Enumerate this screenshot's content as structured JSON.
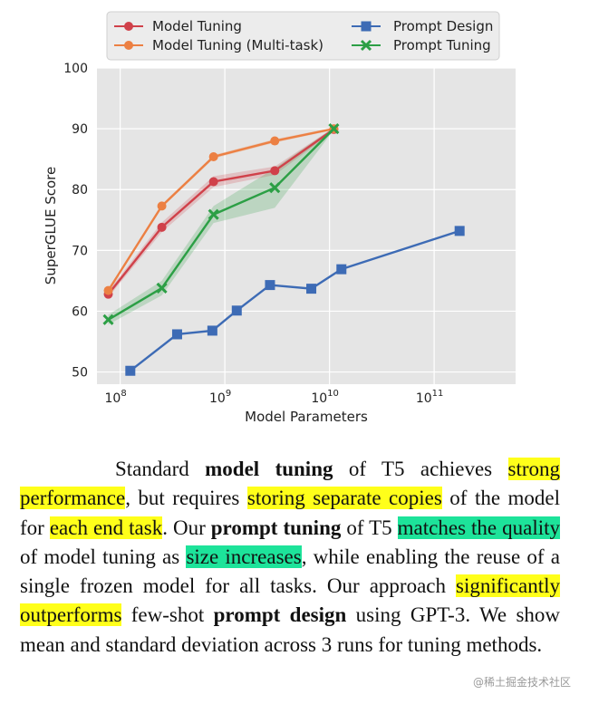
{
  "chart_data": {
    "type": "line",
    "xlabel": "Model Parameters",
    "ylabel": "SuperGLUE Score",
    "xscale": "log",
    "xlim": [
      60000000,
      600000000000
    ],
    "ylim": [
      48,
      100
    ],
    "yticks": [
      50,
      60,
      70,
      80,
      90,
      100
    ],
    "xticks": [
      {
        "value": 100000000,
        "base": "10",
        "exp": "8"
      },
      {
        "value": 1000000000,
        "base": "10",
        "exp": "9"
      },
      {
        "value": 10000000000,
        "base": "10",
        "exp": "10"
      },
      {
        "value": 100000000000,
        "base": "10",
        "exp": "11"
      }
    ],
    "grid": true,
    "legend_position": "top",
    "series": [
      {
        "name": "Model Tuning",
        "color": "#d0414a",
        "marker": "circle",
        "x": [
          77000000,
          250000000,
          780000000,
          3000000000,
          11000000000
        ],
        "y": [
          62.8,
          73.8,
          81.3,
          83.1,
          89.9
        ],
        "lower": [
          62.3,
          73.0,
          80.4,
          82.4,
          89.6
        ],
        "upper": [
          63.3,
          74.6,
          82.2,
          83.8,
          90.2
        ]
      },
      {
        "name": "Model Tuning (Multi-task)",
        "color": "#ec8043",
        "marker": "circle",
        "x": [
          77000000,
          250000000,
          780000000,
          3000000000,
          11000000000
        ],
        "y": [
          63.4,
          77.3,
          85.4,
          88.0,
          90.0
        ],
        "lower": [
          63.2,
          77.0,
          85.1,
          87.7,
          89.8
        ],
        "upper": [
          63.6,
          77.6,
          85.7,
          88.3,
          90.2
        ]
      },
      {
        "name": "Prompt Design",
        "color": "#3d6bb5",
        "marker": "square",
        "x": [
          125000000,
          350000000,
          760000000,
          1300000000,
          2700000000,
          6700000000,
          13000000000,
          175000000000
        ],
        "y": [
          50.2,
          56.2,
          56.8,
          60.1,
          64.3,
          63.7,
          66.9,
          73.2
        ]
      },
      {
        "name": "Prompt Tuning",
        "color": "#2c9f45",
        "marker": "x",
        "x": [
          77000000,
          250000000,
          780000000,
          3000000000,
          11000000000
        ],
        "y": [
          58.6,
          63.8,
          75.9,
          80.3,
          90.0
        ],
        "lower": [
          57.8,
          62.6,
          74.5,
          77.0,
          89.8
        ],
        "upper": [
          59.4,
          65.0,
          77.3,
          83.5,
          90.2
        ]
      }
    ]
  },
  "caption": {
    "s1": "Standard ",
    "b1": "model tuning",
    "s2": " of T5 achieves ",
    "h1": "strong performance",
    "s3": ", but requires ",
    "h2": "storing separate copies",
    "s4": " of the model for ",
    "h3": "each end task",
    "s5": ".  Our ",
    "b2": "prompt tuning",
    "s6": " of T5 ",
    "h4": "matches the quality",
    "s7": " of model tuning as ",
    "h5": "size increases",
    "s8": ", while enabling the reuse of a single frozen model for all tasks.  Our approach ",
    "h6": "significantly outperforms",
    "s9": " few-shot ",
    "b3": "prompt design",
    "s10": " using GPT-3.  We show mean and standard deviation across 3 runs for tuning methods."
  },
  "watermark": "@稀土掘金技术社区"
}
